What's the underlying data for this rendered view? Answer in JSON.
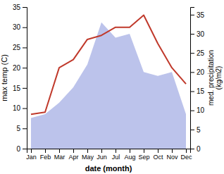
{
  "chart_data": {
    "type": "line",
    "categories": [
      "Jan",
      "Feb",
      "Mar",
      "Apr",
      "May",
      "Jun",
      "Jul",
      "Aug",
      "Sep",
      "Oct",
      "Nov",
      "Dec"
    ],
    "series": [
      {
        "type": "area",
        "axis": "y2",
        "color": "#b0b8e8",
        "values": [
          8,
          9,
          12,
          16,
          22,
          33,
          29,
          30,
          20,
          19,
          20,
          9
        ]
      },
      {
        "type": "line",
        "color": "#c0392b",
        "values": [
          8.5,
          9.0,
          20.0,
          22.0,
          27.0,
          28.0,
          30.0,
          30.0,
          33.0,
          26.0,
          20.0,
          16.0
        ]
      }
    ],
    "xlabel": "date (month)",
    "ylabel": "max temp (C)",
    "y2label": "med. precipitation\n(kg/m2)",
    "ylim": [
      0,
      35
    ],
    "yticks": [
      0,
      5,
      10,
      15,
      20,
      25,
      30,
      35
    ],
    "y2lim": [
      0,
      37
    ],
    "y2ticks": [
      0,
      5,
      10,
      15,
      20,
      25,
      30,
      35
    ],
    "grid": false
  }
}
